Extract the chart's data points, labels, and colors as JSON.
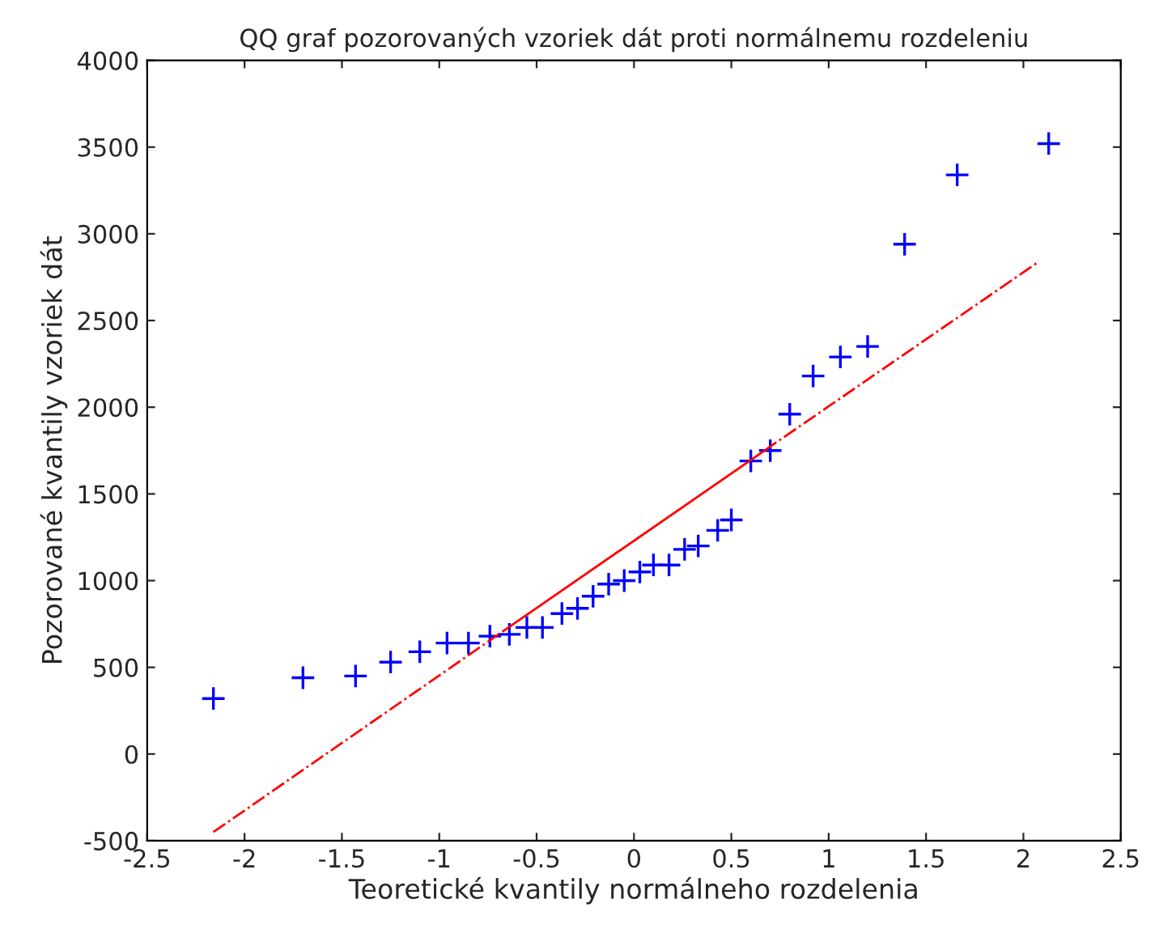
{
  "chart_data": {
    "type": "scatter",
    "title": "QQ graf pozorovaných vzoriek dát proti normálnemu rozdeleniu",
    "xlabel": "Teoretické kvantily normálneho rozdelenia",
    "ylabel": "Pozorované kvantily vzoriek dát",
    "xlim": [
      -2.5,
      2.5
    ],
    "ylim": [
      -500,
      4000
    ],
    "xticks": [
      -2.5,
      -2,
      -1.5,
      -1,
      -0.5,
      0,
      0.5,
      1,
      1.5,
      2,
      2.5
    ],
    "yticks": [
      -500,
      0,
      500,
      1000,
      1500,
      2000,
      2500,
      3000,
      3500,
      4000
    ],
    "grid": false,
    "legend": false,
    "series": [
      {
        "color": "#0000ff",
        "marker": "cross",
        "x": [
          -2.16,
          -1.7,
          -1.43,
          -1.25,
          -1.1,
          -0.96,
          -0.85,
          -0.74,
          -0.64,
          -0.55,
          -0.47,
          -0.37,
          -0.29,
          -0.21,
          -0.13,
          -0.05,
          0.03,
          0.1,
          0.18,
          0.26,
          0.33,
          0.43,
          0.5,
          0.6,
          0.7,
          0.8,
          0.92,
          1.06,
          1.2,
          1.39,
          1.66,
          2.13
        ],
        "values": [
          320,
          440,
          450,
          530,
          590,
          640,
          640,
          680,
          690,
          730,
          730,
          810,
          840,
          910,
          980,
          1000,
          1050,
          1090,
          1090,
          1180,
          1200,
          1290,
          1350,
          1690,
          1750,
          1960,
          2180,
          2290,
          2350,
          2940,
          3340,
          3520
        ]
      },
      {
        "type": "line",
        "color": "#ff0000",
        "line_style": "dashdot",
        "x": [
          -2.16,
          -0.67
        ],
        "values": [
          -450,
          710
        ]
      },
      {
        "type": "line",
        "color": "#ff0000",
        "line_style": "solid",
        "x": [
          -0.67,
          0.67
        ],
        "values": [
          710,
          1750
        ]
      },
      {
        "type": "line",
        "color": "#ff0000",
        "line_style": "dashdot",
        "x": [
          0.67,
          2.08
        ],
        "values": [
          1750,
          2840
        ]
      }
    ]
  }
}
